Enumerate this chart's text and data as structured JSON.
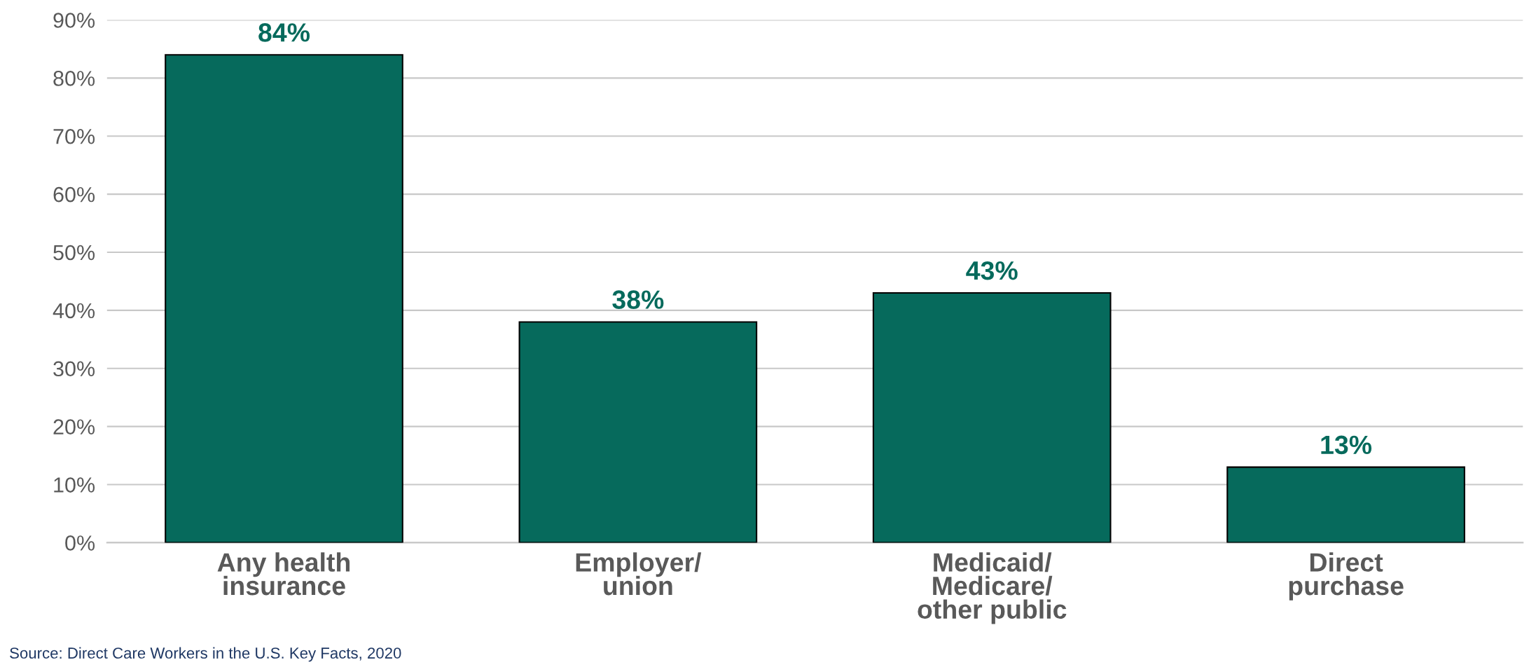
{
  "chart_data": {
    "type": "bar",
    "categories": [
      "Any health\ninsurance",
      "Employer/\nunion",
      "Medicaid/\nMedicare/\nother public",
      "Direct\npurchase"
    ],
    "values": [
      84,
      38,
      43,
      13
    ],
    "value_labels": [
      "84%",
      "38%",
      "43%",
      "13%"
    ],
    "color": "#066a5c",
    "ylim": [
      0,
      90
    ],
    "yticks": [
      {
        "value": 0,
        "label": "0%"
      },
      {
        "value": 10,
        "label": "10%"
      },
      {
        "value": 20,
        "label": "20%"
      },
      {
        "value": 30,
        "label": "30%"
      },
      {
        "value": 40,
        "label": "40%"
      },
      {
        "value": 50,
        "label": "50%"
      },
      {
        "value": 60,
        "label": "60%"
      },
      {
        "value": 70,
        "label": "70%"
      },
      {
        "value": 80,
        "label": "80%"
      },
      {
        "value": 90,
        "label": "90%"
      }
    ],
    "grid": "y",
    "annotations": [
      "Source: Direct Care Workers in the U.S. Key Facts, 2020"
    ]
  }
}
